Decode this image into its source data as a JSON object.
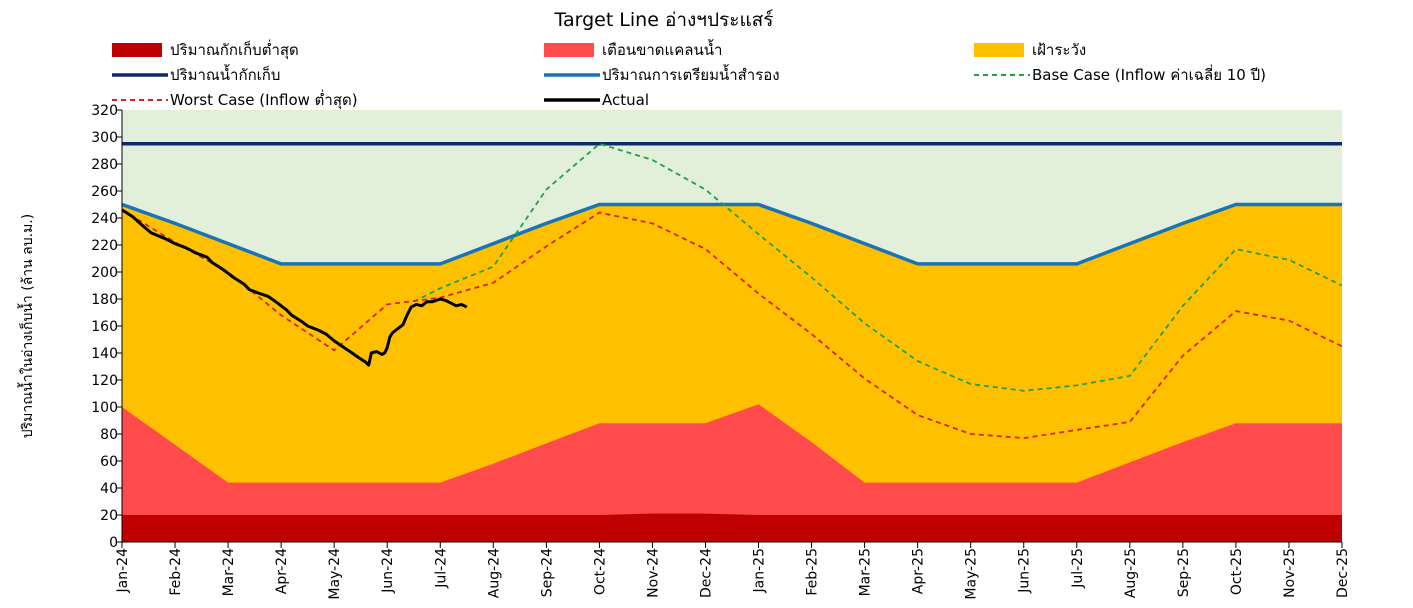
{
  "chart_data": {
    "type": "area",
    "title": "Target Line อ่างฯประแสร์",
    "ylabel": "ปริมาณน้ำในอ่างเก็บน้ำ (ล้าน ลบ.ม.)",
    "xlabel": "",
    "ylim": [
      0,
      320
    ],
    "yticks": [
      0,
      20,
      40,
      60,
      80,
      100,
      120,
      140,
      160,
      180,
      200,
      220,
      240,
      260,
      280,
      300,
      320
    ],
    "categories": [
      "Jan-24",
      "Feb-24",
      "Mar-24",
      "Apr-24",
      "May-24",
      "Jun-24",
      "Jul-24",
      "Aug-24",
      "Sep-24",
      "Oct-24",
      "Nov-24",
      "Dec-24",
      "Jan-25",
      "Feb-25",
      "Mar-25",
      "Apr-25",
      "May-25",
      "Jun-25",
      "Jul-25",
      "Aug-25",
      "Sep-25",
      "Oct-25",
      "Nov-25",
      "Dec-25"
    ],
    "grid": false,
    "legend_position": "top",
    "colors": {
      "background": "#e2efda",
      "min_storage": "#c00000",
      "shortage_warning": "#ff4b4b",
      "watch": "#ffc000",
      "capacity": "#0f2a6b",
      "reserve": "#1a73b5",
      "base_case": "#21a048",
      "worst_case": "#d12424",
      "actual": "#000000"
    },
    "legend": [
      {
        "key": "min_storage",
        "label": "ปริมาณกักเก็บต่ำสุด",
        "style": "fill"
      },
      {
        "key": "shortage_warning",
        "label": "เตือนขาดแคลนน้ำ",
        "style": "fill"
      },
      {
        "key": "watch",
        "label": "เฝ้าระวัง",
        "style": "fill"
      },
      {
        "key": "capacity",
        "label": "ปริมาณน้ำกักเก็บ",
        "style": "line"
      },
      {
        "key": "reserve",
        "label": "ปริมาณการเตรียมน้ำสำรอง",
        "style": "line"
      },
      {
        "key": "base_case",
        "label": "Base Case (Inflow ค่าเฉลี่ย 10 ปี)",
        "style": "dash"
      },
      {
        "key": "worst_case",
        "label": "Worst Case (Inflow ต่ำสุด)",
        "style": "dash"
      },
      {
        "key": "actual",
        "label": "Actual",
        "style": "line"
      }
    ],
    "series": [
      {
        "key": "min_storage",
        "name": "ปริมาณกักเก็บต่ำสุด",
        "kind": "area",
        "values": [
          20,
          20,
          20,
          20,
          20,
          20,
          20,
          20,
          20,
          20,
          21,
          21,
          20,
          20,
          20,
          20,
          20,
          20,
          20,
          20,
          20,
          20,
          20,
          20
        ]
      },
      {
        "key": "shortage_warning",
        "name": "เตือนขาดแคลนน้ำ",
        "kind": "area",
        "values": [
          100,
          72,
          44,
          44,
          44,
          44,
          44,
          58,
          73,
          88,
          88,
          88,
          102,
          74,
          44,
          44,
          44,
          44,
          44,
          59,
          74,
          88,
          88,
          88
        ]
      },
      {
        "key": "reserve",
        "name": "ปริมาณการเตรียมน้ำสำรอง",
        "kind": "area-line",
        "values": [
          250,
          236,
          221,
          206,
          206,
          206,
          206,
          221,
          236,
          250,
          250,
          250,
          250,
          236,
          221,
          206,
          206,
          206,
          206,
          221,
          236,
          250,
          250,
          250
        ]
      },
      {
        "key": "capacity",
        "name": "ปริมาณน้ำกักเก็บ",
        "kind": "line",
        "values": [
          295,
          295,
          295,
          295,
          295,
          295,
          295,
          295,
          295,
          295,
          295,
          295,
          295,
          295,
          295,
          295,
          295,
          295,
          295,
          295,
          295,
          295,
          295,
          295
        ]
      },
      {
        "key": "base_case",
        "name": "Base Case (Inflow ค่าเฉลี่ย 10 ปี)",
        "kind": "dash",
        "points": [
          [
            5.5,
            178
          ],
          [
            6,
            188
          ],
          [
            7,
            204
          ],
          [
            8,
            261
          ],
          [
            9,
            295
          ],
          [
            10,
            283
          ],
          [
            11,
            261
          ],
          [
            12,
            228
          ],
          [
            13,
            196
          ],
          [
            14,
            162
          ],
          [
            15,
            134
          ],
          [
            16,
            117
          ],
          [
            17,
            112
          ],
          [
            18,
            116
          ],
          [
            19,
            123
          ],
          [
            20,
            175
          ],
          [
            21,
            217
          ],
          [
            22,
            209
          ],
          [
            23,
            190
          ]
        ]
      },
      {
        "key": "worst_case",
        "name": "Worst Case (Inflow ต่ำสุด)",
        "kind": "dash",
        "points": [
          [
            0,
            246
          ],
          [
            1,
            222
          ],
          [
            2,
            200
          ],
          [
            3,
            168
          ],
          [
            4,
            142
          ],
          [
            5,
            176
          ],
          [
            6,
            181
          ],
          [
            7,
            192
          ],
          [
            8,
            219
          ],
          [
            9,
            244
          ],
          [
            10,
            236
          ],
          [
            11,
            217
          ],
          [
            12,
            184
          ],
          [
            13,
            154
          ],
          [
            14,
            121
          ],
          [
            15,
            94
          ],
          [
            16,
            80
          ],
          [
            17,
            77
          ],
          [
            18,
            83
          ],
          [
            19,
            89
          ],
          [
            20,
            138
          ],
          [
            21,
            171
          ],
          [
            22,
            164
          ],
          [
            23,
            145
          ]
        ]
      },
      {
        "key": "actual",
        "name": "Actual",
        "kind": "line",
        "points": [
          [
            0,
            246
          ],
          [
            0.2,
            241
          ],
          [
            0.4,
            234
          ],
          [
            0.55,
            229
          ],
          [
            0.8,
            225
          ],
          [
            1.0,
            221
          ],
          [
            1.2,
            218
          ],
          [
            1.4,
            214
          ],
          [
            1.6,
            211
          ],
          [
            1.7,
            207
          ],
          [
            1.9,
            202
          ],
          [
            2.1,
            196
          ],
          [
            2.3,
            191
          ],
          [
            2.4,
            187
          ],
          [
            2.6,
            184
          ],
          [
            2.75,
            182
          ],
          [
            2.9,
            178
          ],
          [
            3.0,
            175
          ],
          [
            3.1,
            172
          ],
          [
            3.2,
            168
          ],
          [
            3.4,
            163
          ],
          [
            3.5,
            160
          ],
          [
            3.7,
            157
          ],
          [
            3.85,
            154
          ],
          [
            4.0,
            149
          ],
          [
            4.15,
            145
          ],
          [
            4.3,
            141
          ],
          [
            4.45,
            137
          ],
          [
            4.6,
            133
          ],
          [
            4.65,
            131
          ],
          [
            4.7,
            140
          ],
          [
            4.8,
            141
          ],
          [
            4.9,
            139
          ],
          [
            4.95,
            140
          ],
          [
            5.0,
            144
          ],
          [
            5.05,
            152
          ],
          [
            5.1,
            155
          ],
          [
            5.2,
            158
          ],
          [
            5.3,
            161
          ],
          [
            5.35,
            166
          ],
          [
            5.4,
            170
          ],
          [
            5.45,
            174
          ],
          [
            5.55,
            176
          ],
          [
            5.65,
            175
          ],
          [
            5.75,
            178
          ],
          [
            5.85,
            178
          ],
          [
            6.0,
            180
          ],
          [
            6.1,
            179
          ],
          [
            6.2,
            177
          ],
          [
            6.3,
            175
          ],
          [
            6.4,
            176
          ],
          [
            6.5,
            174
          ]
        ]
      }
    ]
  }
}
